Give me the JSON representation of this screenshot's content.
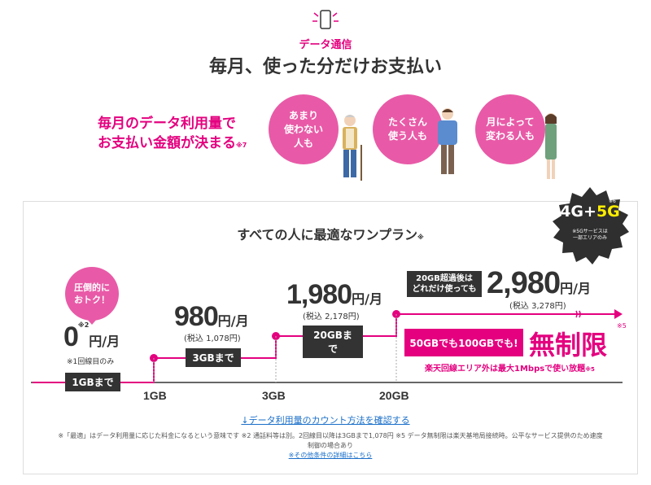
{
  "section_label": "データ通信",
  "headline": "毎月、使った分だけお支払い",
  "lead": {
    "line1": "毎月のデータ利用量で",
    "line2": "お支払い金額が決まる",
    "note": "※7"
  },
  "circles": [
    {
      "line1": "あまり",
      "line2": "使わない",
      "line3": "人も"
    },
    {
      "line1": "たくさん",
      "line2": "使う人も",
      "line3": ""
    },
    {
      "line1": "月によって",
      "line2": "変わる人も",
      "line3": ""
    }
  ],
  "panel": {
    "title": "すべての人に最適なワンプラン",
    "title_note": "※",
    "badge": {
      "prefix": "4G+",
      "highlight": "5G",
      "note": "※6",
      "sub1": "※5Gサービスは",
      "sub2": "一部エリアのみ"
    },
    "bubble": {
      "line1": "圧倒的に",
      "line2": "おトク！"
    },
    "tiers": [
      {
        "price": "0",
        "note": "※2",
        "unit": "円/月",
        "sub": "※1回線目のみ",
        "tag": "1GBまで"
      },
      {
        "price": "980",
        "unit": "円/月",
        "sub": "(税込 1,078円)",
        "tag": "3GBまで"
      },
      {
        "price": "1,980",
        "unit": "円/月",
        "sub": "(税込 2,178円)",
        "tag": "20GBまで"
      },
      {
        "price": "2,980",
        "unit": "円/月",
        "sub": "(税込 3,278円)",
        "tag_line1": "20GB超過後は",
        "tag_line2": "どれだけ使っても"
      }
    ],
    "axis": [
      "1GB",
      "3GB",
      "20GB"
    ],
    "unlimited_box": "50GBでも100GBでも!",
    "unlimited": "無制限",
    "unlimited_note": "※5",
    "outside_note": "楽天回線エリア外は最大1Mbpsで使い放題",
    "outside_note_mark": "※5",
    "link": "↓データ利用量のカウント方法を確認する",
    "footnote1": "※「最適」はデータ利用量に応じた料金になるという意味です ※2 通話料等は別。2回線目以降は3GBまで1,078円 ※5 データ無制限は楽天基地局接続時。公平なサービス提供のため速度",
    "footnote2": "制御の場合あり",
    "footnote_link": "※その他条件の詳細はこちら"
  },
  "colors": {
    "accent": "#e4007f",
    "circle": "#e85aa7",
    "badge": "#333333",
    "badge_highlight": "#ffee00",
    "link": "#1a6fc9"
  }
}
